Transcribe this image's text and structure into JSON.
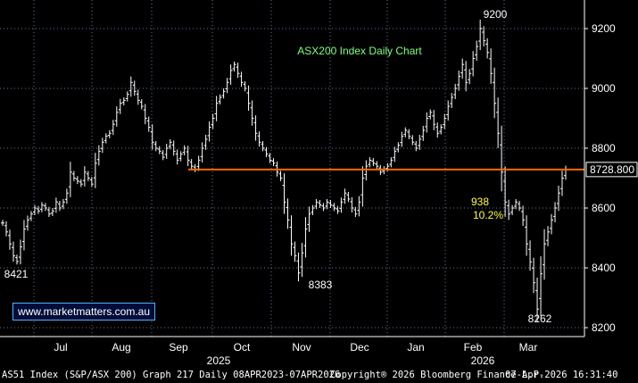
{
  "chart_data": {
    "type": "bar",
    "subtype": "ohlc",
    "title": "ASX200 Index Daily Chart",
    "y_ticks": [
      8200,
      8400,
      8600,
      8800,
      9000,
      9200
    ],
    "ylim": [
      8180,
      9240
    ],
    "x_tick_labels": [
      "Jul",
      "Aug",
      "Sep",
      "Oct",
      "Nov",
      "Dec",
      "Jan",
      "Feb",
      "Mar"
    ],
    "year_labels": [
      "2025",
      "2026"
    ],
    "grid": true,
    "grid_style": "dotted",
    "price_label": "8728.800",
    "level_line": 8728.8,
    "series": [
      {
        "values": [
          8550,
          8520,
          8480,
          8440,
          8421,
          8470,
          8530,
          8560,
          8580,
          8600,
          8590,
          8610,
          8600,
          8580,
          8590,
          8620,
          8600,
          8620,
          8650,
          8720,
          8700,
          8690,
          8680,
          8720,
          8700,
          8680,
          8750,
          8790,
          8820,
          8840,
          8850,
          8880,
          8920,
          8950,
          8960,
          8980,
          9020,
          8990,
          8960,
          8940,
          8900,
          8870,
          8820,
          8800,
          8790,
          8770,
          8800,
          8820,
          8790,
          8760,
          8780,
          8800,
          8760,
          8740,
          8730,
          8760,
          8800,
          8830,
          8870,
          8900,
          8950,
          8970,
          8990,
          9020,
          9060,
          9080,
          9050,
          9020,
          9000,
          8950,
          8900,
          8850,
          8820,
          8800,
          8780,
          8760,
          8750,
          8720,
          8700,
          8620,
          8560,
          8480,
          8440,
          8383,
          8450,
          8530,
          8580,
          8600,
          8620,
          8610,
          8600,
          8620,
          8610,
          8600,
          8590,
          8620,
          8650,
          8630,
          8600,
          8580,
          8620,
          8700,
          8740,
          8760,
          8750,
          8740,
          8720,
          8730,
          8740,
          8760,
          8790,
          8810,
          8840,
          8860,
          8840,
          8820,
          8800,
          8830,
          8860,
          8900,
          8920,
          8880,
          8850,
          8870,
          8900,
          8940,
          8970,
          9000,
          9040,
          9080,
          9020,
          9050,
          9100,
          9140,
          9200,
          9160,
          9120,
          9050,
          8950,
          8850,
          8720,
          8620,
          8580,
          8600,
          8620,
          8600,
          8560,
          8480,
          8420,
          8350,
          8262,
          8380,
          8480,
          8520,
          8560,
          8600,
          8650,
          8700,
          8728
        ]
      }
    ],
    "annotations": [
      {
        "text": "8421",
        "x": 4,
        "y": 8421
      },
      {
        "text": "8383",
        "x": 83,
        "y": 8383
      },
      {
        "text": "9200",
        "x": 132,
        "y": 9200
      },
      {
        "text": "8262",
        "x": 148,
        "y": 8262
      },
      {
        "text": "938",
        "x": 128,
        "y": 8620
      },
      {
        "text": "10.2%",
        "x": 128,
        "y": 8580
      }
    ]
  },
  "watermark": "www.marketmatters.com.au",
  "footer": {
    "left": "AS51 Index (S&P/ASX 200) Graph 217 Daily 08APR2023-07APR2026",
    "middle": "Copyright® 2026 Bloomberg Finance L.P.",
    "right": "07-Apr-2026 16:31:40"
  },
  "colors": {
    "background": "#000000",
    "bars": "#ffffff",
    "level_line": "#ff6a00",
    "title": "#7dff7d",
    "annotation_highlight": "#ffff33",
    "grid": "#5a7a9a",
    "price_label_bg": "#000000"
  }
}
